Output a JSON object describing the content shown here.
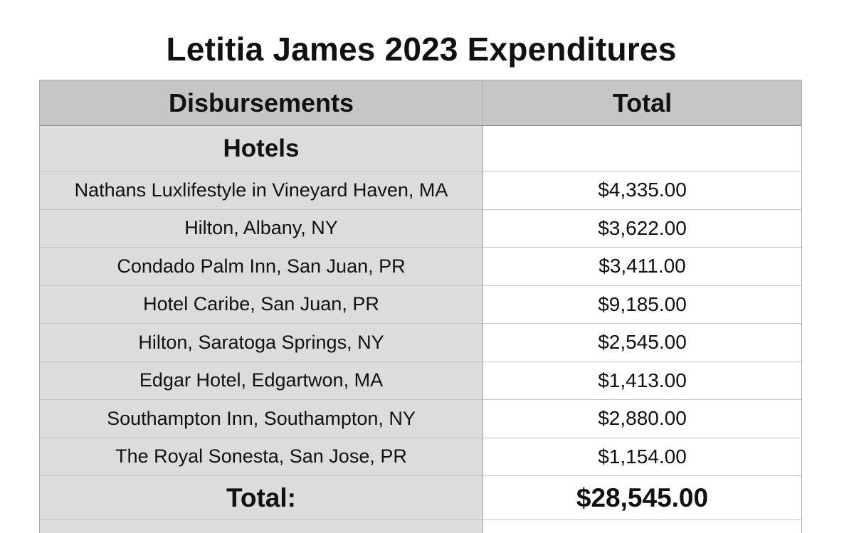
{
  "title": "Letitia James 2023 Expenditures",
  "table": {
    "headers": {
      "left": "Disbursements",
      "right": "Total"
    },
    "section": "Hotels",
    "rows": [
      {
        "name": "Nathans Luxlifestyle in Vineyard Haven, MA",
        "amount": "$4,335.00"
      },
      {
        "name": "Hilton, Albany, NY",
        "amount": "$3,622.00"
      },
      {
        "name": "Condado Palm Inn, San Juan, PR",
        "amount": "$3,411.00"
      },
      {
        "name": "Hotel Caribe, San Juan, PR",
        "amount": "$9,185.00"
      },
      {
        "name": "Hilton, Saratoga Springs, NY",
        "amount": "$2,545.00"
      },
      {
        "name": "Edgar Hotel, Edgartwon, MA",
        "amount": "$1,413.00"
      },
      {
        "name": "Southampton Inn, Southampton, NY",
        "amount": "$2,880.00"
      },
      {
        "name": "The Royal Sonesta, San Jose, PR",
        "amount": "$1,154.00"
      }
    ],
    "total_label": "Total:",
    "total_amount": "$28,545.00"
  },
  "colors": {
    "header_bg": "#c6c6c6",
    "left_column_bg": "#dcdcdc",
    "right_column_bg": "#ffffff",
    "border": "#a8a8a8"
  }
}
